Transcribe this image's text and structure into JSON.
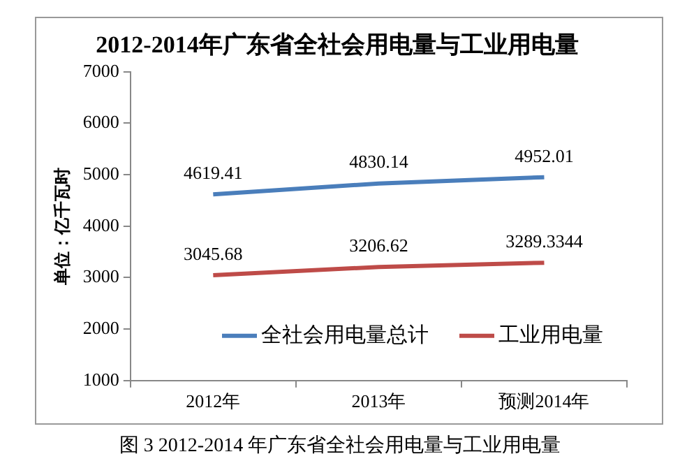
{
  "chart_data": {
    "type": "line",
    "title": "2012-2014年广东省全社会用电量与工业用电量",
    "ylabel": "单位：亿千瓦时",
    "categories": [
      "2012年",
      "2013年",
      "预测2014年"
    ],
    "series": [
      {
        "name": "全社会用电量总计",
        "color": "#4a7ebb",
        "values": [
          4619.41,
          4830.14,
          4952.01
        ]
      },
      {
        "name": "工业用电量",
        "color": "#be4b48",
        "values": [
          3045.68,
          3206.62,
          3289.3344
        ]
      }
    ],
    "ylim": [
      1000,
      7000
    ],
    "yticks": [
      1000,
      2000,
      3000,
      4000,
      5000,
      6000,
      7000
    ],
    "grid": false,
    "legend": "bottom right",
    "data_labels": true,
    "annotations": [
      "图 3 2012-2014 年广东省全社会用电量与工业用电量"
    ]
  }
}
